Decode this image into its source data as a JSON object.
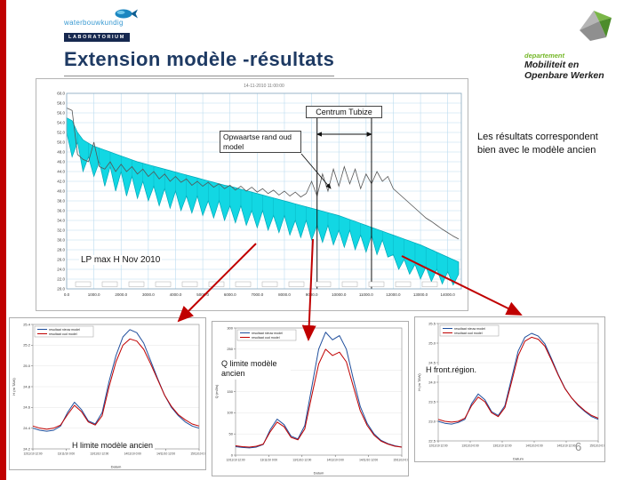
{
  "slide": {
    "title": "Extension modèle -résultats",
    "note": "Les résultats correspondent bien avec le modèle ancien",
    "page_number": "6"
  },
  "logos": {
    "wl_name": "waterbouwkundig",
    "wl_sub": "LABORATORIUM",
    "mow_dept": "departement",
    "mow_line1": "Mobiliteit en",
    "mow_line2": "Openbare Werken"
  },
  "chart_data": [
    {
      "id": "longitudinal-profile",
      "type": "area",
      "title": "14-11-2010 11:00:00",
      "annotations": {
        "centrum": "Centrum Tubize",
        "upstream": "Opwaartse rand oud model",
        "lp": "LP max H Nov 2010"
      },
      "xlim": [
        0,
        14500
      ],
      "ylim": [
        20,
        60
      ],
      "dx": 200,
      "x_tick_step": 1000,
      "x_ticks": [
        "0.0",
        "1000.0",
        "2000.0",
        "3000.0",
        "4000.0",
        "5000.0",
        "6000.0",
        "7000.0",
        "8000.0",
        "9000.0",
        "10000.0",
        "11000.0",
        "12000.0",
        "13000.0",
        "14000.0"
      ],
      "marker_x": [
        9200,
        11200
      ],
      "top_line": [
        57,
        56.5,
        47.5,
        46.5,
        46,
        50,
        45,
        44.5,
        46,
        44,
        45.5,
        44,
        45,
        43.5,
        44.5,
        43,
        44,
        42.5,
        43.5,
        42,
        43,
        41.8,
        42.5,
        41.2,
        42,
        41,
        41.8,
        40.8,
        41.5,
        40.5,
        41.2,
        40.2,
        41,
        40,
        40.8,
        39.8,
        40.5,
        39.5,
        40.2,
        39.2,
        40,
        39,
        39.8,
        38.8,
        39.5,
        42,
        39,
        43.5,
        40,
        44.5,
        41,
        45,
        41.5,
        44.5,
        40.5,
        43.5,
        41.5,
        44,
        42,
        43,
        40.5,
        39.5,
        38.5,
        37.5,
        36.5,
        35.5,
        34.5,
        33.8,
        33,
        32.2,
        31.5,
        30.8,
        30.2
      ],
      "band_upper": [
        55,
        54.4,
        52,
        50.5,
        49.8,
        49.2,
        48.8,
        48.4,
        48,
        47.6,
        47.2,
        46.8,
        46.4,
        46,
        45.7,
        45.4,
        45.1,
        44.8,
        44.5,
        44.2,
        43.9,
        43.6,
        43.3,
        43,
        42.7,
        42.4,
        42.1,
        41.8,
        41.5,
        41.2,
        41,
        40.7,
        40.4,
        40.1,
        39.8,
        39.5,
        39.2,
        38.9,
        38.6,
        38.3,
        38,
        37.7,
        37.4,
        37.1,
        36.8,
        36.5,
        36.2,
        35.9,
        35.6,
        35.3,
        35,
        34.6,
        34.2,
        33.8,
        33.4,
        33,
        32.6,
        32.2,
        31.8,
        31.4,
        31,
        30.6,
        30.2,
        29.8,
        29.4,
        29,
        28.5,
        28,
        27.5,
        27,
        26.5,
        26,
        25.5
      ],
      "band_lower": [
        52,
        47,
        50,
        44,
        47,
        43,
        46,
        41,
        45,
        40,
        44,
        39,
        43,
        38.5,
        42,
        38,
        41,
        37,
        40.5,
        36.5,
        40,
        36,
        39,
        35.5,
        39,
        35,
        38,
        34.5,
        38,
        34,
        37,
        33.5,
        37,
        33,
        36,
        32.5,
        36,
        32,
        35,
        31.5,
        35,
        31,
        34,
        30.5,
        34,
        30,
        33,
        29.5,
        33,
        29,
        32,
        28.5,
        32,
        28,
        31,
        27.5,
        31,
        27,
        30,
        26.5,
        27,
        24,
        26,
        23,
        25,
        22,
        24.5,
        21.5,
        24,
        21,
        23.5,
        20.8,
        23
      ],
      "colors": {
        "band": "#12d7e3",
        "band_edge": "#00a8b8",
        "top_line": "#555555",
        "grid": "#bcdcef"
      }
    },
    {
      "id": "h-limite-modele-ancien",
      "type": "line",
      "label": "H limite modèle ancien",
      "xlabel": "Datum",
      "ylabel": "H (m TAW)",
      "ylim": [
        24.2,
        25.4
      ],
      "y_ticks": [
        "24.2",
        "24.4",
        "24.6",
        "24.8",
        "25.0",
        "25.2",
        "25.4"
      ],
      "x_ticks": [
        "12/11/10 12:00",
        "13/11/10 0:00",
        "13/11/10 12:00",
        "14/11/10 0:00",
        "14/11/10 12:00",
        "15/11/10 0:00"
      ],
      "series": [
        {
          "name": "resultaat nieuw model",
          "color": "#1f4e9c",
          "values": [
            24.4,
            24.38,
            24.37,
            24.38,
            24.42,
            24.55,
            24.65,
            24.58,
            24.47,
            24.44,
            24.55,
            24.85,
            25.1,
            25.28,
            25.35,
            25.32,
            25.22,
            25.05,
            24.88,
            24.72,
            24.6,
            24.52,
            24.46,
            24.42,
            24.4
          ]
        },
        {
          "name": "resultaat oud model",
          "color": "#c00000",
          "values": [
            24.42,
            24.4,
            24.39,
            24.4,
            24.43,
            24.53,
            24.62,
            24.56,
            24.46,
            24.43,
            24.52,
            24.8,
            25.04,
            25.2,
            25.26,
            25.24,
            25.16,
            25.02,
            24.87,
            24.72,
            24.61,
            24.53,
            24.48,
            24.44,
            24.42
          ]
        }
      ]
    },
    {
      "id": "q-limite-modele-ancien",
      "type": "line",
      "label": "Q limite modèle ancien",
      "xlabel": "Datum",
      "ylabel": "Q (m3/s)",
      "ylim": [
        0,
        300
      ],
      "y_ticks": [
        "0",
        "50",
        "100",
        "150",
        "200",
        "250",
        "300"
      ],
      "x_ticks": [
        "12/11/10 12:00",
        "13/11/10 0:00",
        "13/11/10 12:00",
        "14/11/10 0:00",
        "14/11/10 12:00",
        "15/11/10 0:00"
      ],
      "series": [
        {
          "name": "resultaat nieuw model",
          "color": "#1f4e9c",
          "values": [
            20,
            18,
            17,
            19,
            25,
            60,
            85,
            72,
            45,
            38,
            70,
            160,
            250,
            290,
            272,
            282,
            250,
            180,
            115,
            75,
            50,
            35,
            27,
            22,
            19
          ]
        },
        {
          "name": "resultaat oud model",
          "color": "#c00000",
          "values": [
            22,
            20,
            19,
            21,
            26,
            55,
            78,
            67,
            42,
            36,
            62,
            140,
            215,
            250,
            235,
            243,
            220,
            162,
            105,
            70,
            47,
            33,
            26,
            21,
            19
          ]
        }
      ]
    },
    {
      "id": "h-front-region",
      "type": "line",
      "label": "H front.région.",
      "xlabel": "Datum",
      "ylabel": "H (m TAW)",
      "ylim": [
        22.5,
        25.5
      ],
      "y_ticks": [
        "22.5",
        "23.0",
        "23.5",
        "24.0",
        "24.5",
        "25.0",
        "25.5"
      ],
      "x_ticks": [
        "12/11/10 12:00",
        "13/11/10 0:00",
        "13/11/10 12:00",
        "14/11/10 0:00",
        "14/11/10 12:00",
        "15/11/10 0:00"
      ],
      "series": [
        {
          "name": "resultaat nieuw model",
          "color": "#1f4e9c",
          "values": [
            23.0,
            22.95,
            22.93,
            22.97,
            23.05,
            23.45,
            23.7,
            23.55,
            23.25,
            23.15,
            23.4,
            24.1,
            24.8,
            25.15,
            25.25,
            25.18,
            24.98,
            24.6,
            24.2,
            23.85,
            23.6,
            23.4,
            23.25,
            23.12,
            23.05
          ]
        },
        {
          "name": "resultaat oud model",
          "color": "#c00000",
          "values": [
            23.05,
            23.0,
            22.98,
            23.0,
            23.08,
            23.4,
            23.62,
            23.5,
            23.22,
            23.12,
            23.35,
            24.0,
            24.68,
            25.05,
            25.15,
            25.1,
            24.92,
            24.56,
            24.18,
            23.84,
            23.6,
            23.42,
            23.27,
            23.15,
            23.08
          ]
        }
      ]
    }
  ]
}
